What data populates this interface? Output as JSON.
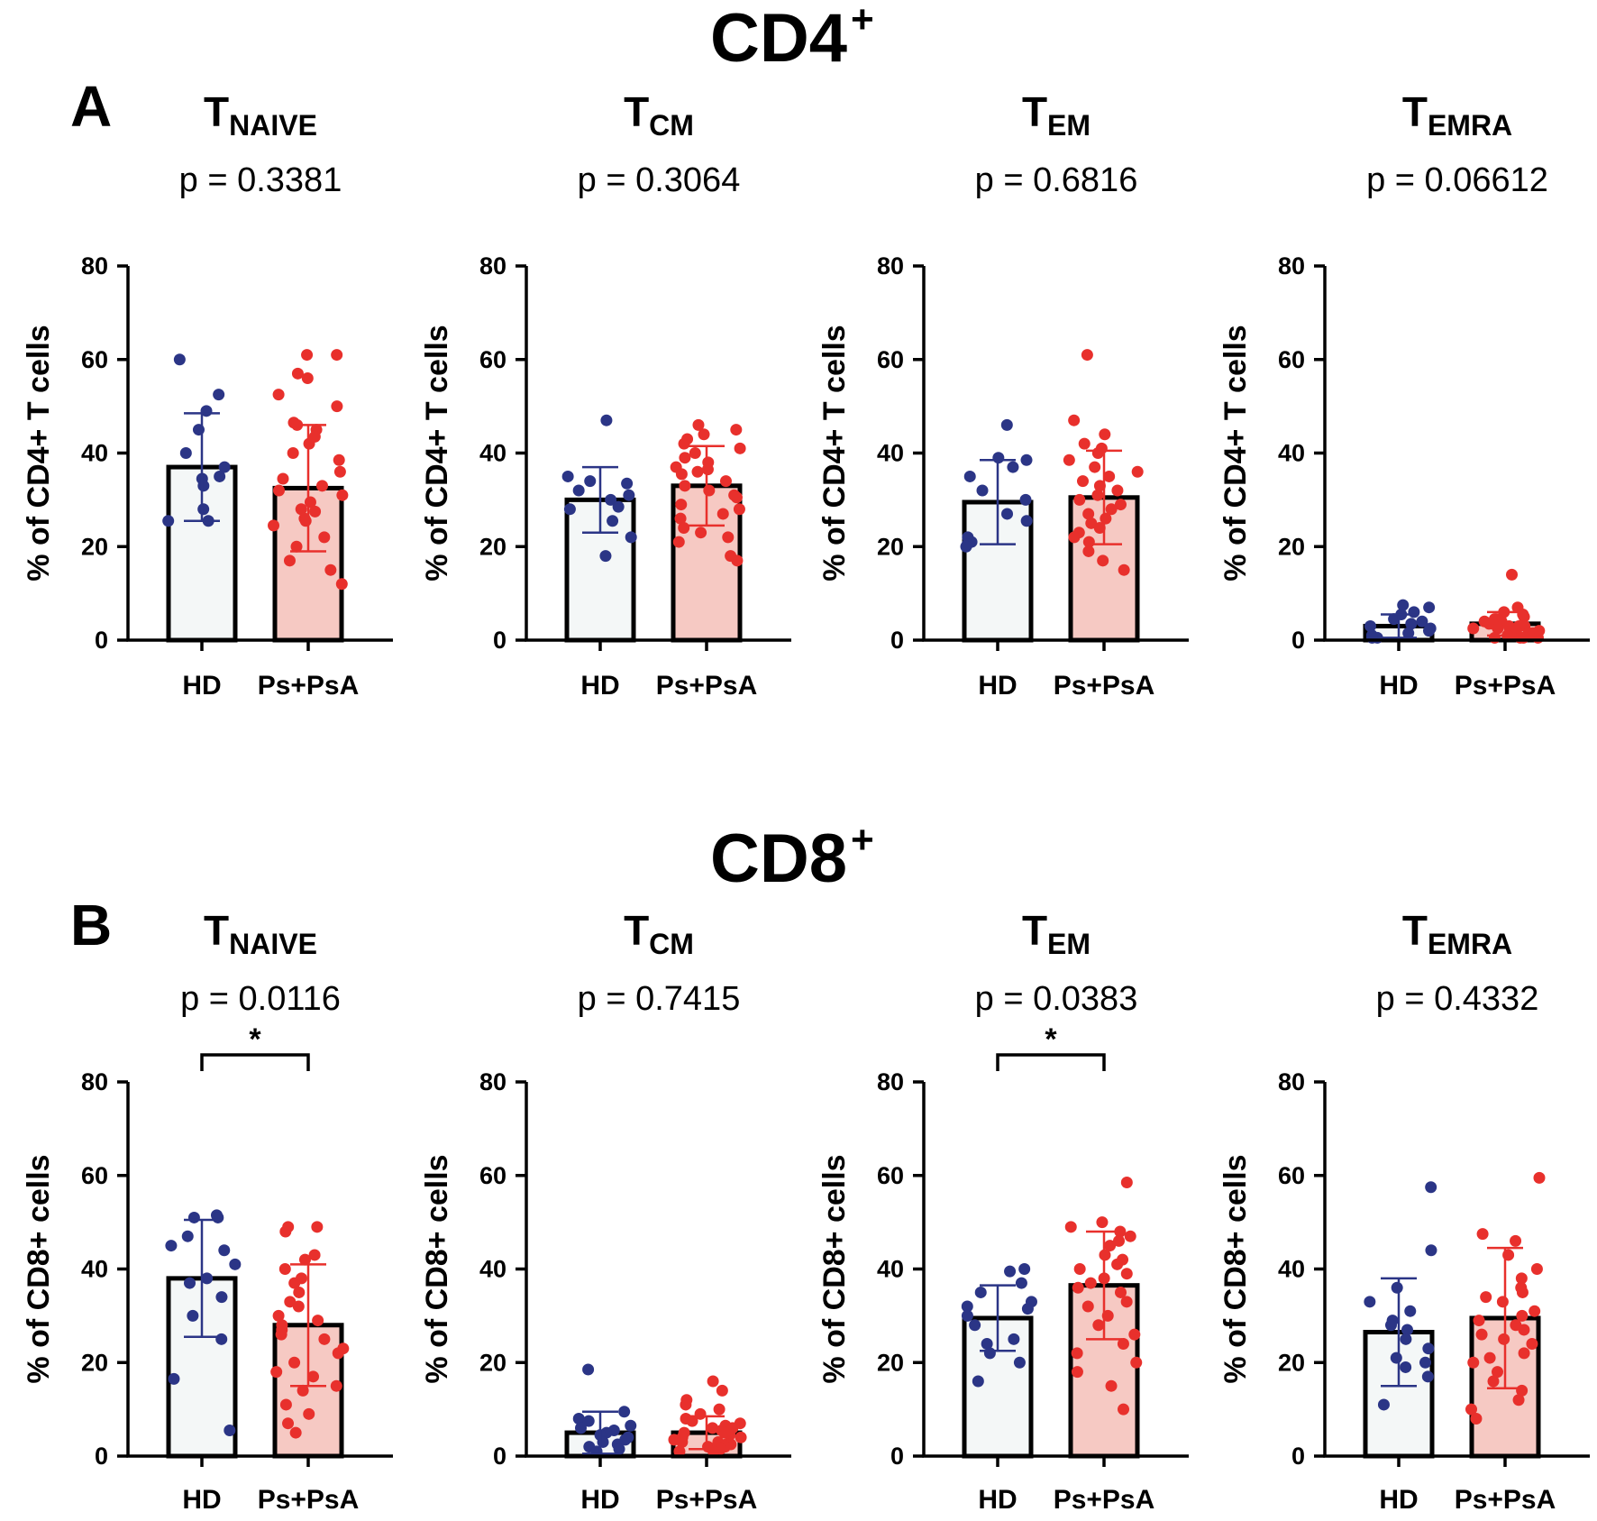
{
  "figure": {
    "sections": [
      {
        "title": "CD4",
        "sup": "+",
        "letter": "A"
      },
      {
        "title": "CD8",
        "sup": "+",
        "letter": "B"
      }
    ]
  },
  "colors": {
    "hd": "#2b3586",
    "ps": "#e8302c",
    "hd_fill": "#f4f7f7",
    "ps_fill": "#f6c9c3"
  },
  "chart_data": [
    {
      "id": "cd4-naive",
      "type": "bar",
      "section": 0,
      "title": "T",
      "subscript": "NAIVE",
      "p_text": "p = 0.3381",
      "ylabel": "% of CD4+ T cells",
      "ylim": [
        0,
        80
      ],
      "yticks": [
        "0",
        "20",
        "40",
        "60",
        "80"
      ],
      "categories": [
        "HD",
        "Ps+PsA"
      ],
      "significant": false,
      "star": "",
      "series": [
        {
          "name": "HD",
          "mean": 37,
          "sd": 11.5,
          "points": [
            60,
            52.5,
            49,
            45,
            40,
            37,
            35,
            34.5,
            33,
            28,
            25.5,
            25.5
          ]
        },
        {
          "name": "Ps+PsA",
          "mean": 32.5,
          "sd": 13.5,
          "points": [
            61,
            61,
            57,
            56,
            52.5,
            50,
            46.5,
            46,
            45,
            43.5,
            42,
            40,
            38.5,
            36,
            34.5,
            33,
            32,
            31,
            29.5,
            28,
            27.5,
            26,
            25.5,
            24.5,
            22,
            20,
            17,
            15,
            12
          ]
        }
      ]
    },
    {
      "id": "cd4-cm",
      "type": "bar",
      "section": 0,
      "title": "T",
      "subscript": "CM",
      "p_text": "p = 0.3064",
      "ylabel": "% of CD4+ T cells",
      "ylim": [
        0,
        80
      ],
      "yticks": [
        "0",
        "20",
        "40",
        "60",
        "80"
      ],
      "categories": [
        "HD",
        "Ps+PsA"
      ],
      "significant": false,
      "star": "",
      "series": [
        {
          "name": "HD",
          "mean": 30,
          "sd": 7,
          "points": [
            47,
            35,
            34,
            33.5,
            32,
            31,
            30,
            28.5,
            28,
            25.5,
            22,
            18
          ]
        },
        {
          "name": "Ps+PsA",
          "mean": 33,
          "sd": 8.5,
          "points": [
            46,
            45,
            44,
            43,
            42,
            41,
            40,
            39,
            38,
            37,
            36.5,
            36,
            35.5,
            34,
            33,
            32,
            31,
            30.5,
            29,
            28,
            27,
            26,
            24,
            23,
            22,
            21,
            18,
            17
          ]
        }
      ]
    },
    {
      "id": "cd4-em",
      "type": "bar",
      "section": 0,
      "title": "T",
      "subscript": "EM",
      "p_text": "p = 0.6816",
      "ylabel": "% of CD4+ T cells",
      "ylim": [
        0,
        80
      ],
      "yticks": [
        "0",
        "20",
        "40",
        "60",
        "80"
      ],
      "categories": [
        "HD",
        "Ps+PsA"
      ],
      "significant": false,
      "star": "",
      "series": [
        {
          "name": "HD",
          "mean": 29.5,
          "sd": 9,
          "points": [
            46,
            39,
            38.5,
            37,
            35,
            32,
            30,
            27,
            25.5,
            22,
            21,
            20.5,
            20
          ]
        },
        {
          "name": "Ps+PsA",
          "mean": 30.5,
          "sd": 10,
          "points": [
            61,
            47,
            44,
            42,
            41,
            40,
            38.5,
            37,
            36,
            35,
            34,
            33,
            32,
            31,
            30,
            29,
            28,
            27,
            26,
            25,
            24,
            23,
            22,
            21,
            19,
            17,
            15
          ]
        }
      ]
    },
    {
      "id": "cd4-emra",
      "type": "bar",
      "section": 0,
      "title": "T",
      "subscript": "EMRA",
      "p_text": "p = 0.06612",
      "ylabel": "% of CD4+ T cells",
      "ylim": [
        0,
        80
      ],
      "yticks": [
        "0",
        "20",
        "40",
        "60",
        "80"
      ],
      "categories": [
        "HD",
        "Ps+PsA"
      ],
      "significant": false,
      "star": "",
      "series": [
        {
          "name": "HD",
          "mean": 3,
          "sd": 2.5,
          "points": [
            7.5,
            7,
            6,
            5.5,
            4.5,
            4,
            3.5,
            3,
            2.5,
            2,
            1.5,
            1,
            0.5,
            0.5
          ]
        },
        {
          "name": "Ps+PsA",
          "mean": 3.5,
          "sd": 2.5,
          "points": [
            14,
            7,
            6,
            5.5,
            5,
            4.5,
            4.5,
            4,
            4,
            3.5,
            3.5,
            3,
            3,
            3,
            2.5,
            2.5,
            2,
            2,
            2,
            1.5,
            1.5,
            1,
            1,
            1,
            0.5,
            0.5,
            0.5,
            0.5
          ]
        }
      ]
    },
    {
      "id": "cd8-naive",
      "type": "bar",
      "section": 1,
      "title": "T",
      "subscript": "NAIVE",
      "p_text": "p = 0.0116",
      "ylabel": "% of CD8+ cells",
      "ylim": [
        0,
        80
      ],
      "yticks": [
        "0",
        "20",
        "40",
        "60",
        "80"
      ],
      "categories": [
        "HD",
        "Ps+PsA"
      ],
      "significant": true,
      "star": "*",
      "series": [
        {
          "name": "HD",
          "mean": 38,
          "sd": 12.5,
          "points": [
            51.5,
            51,
            51,
            47,
            45,
            44,
            41,
            38,
            37,
            34,
            30,
            25,
            16.5,
            5.5
          ]
        },
        {
          "name": "Ps+PsA",
          "mean": 28,
          "sd": 13,
          "points": [
            49,
            49,
            48,
            43,
            42,
            40,
            38,
            37,
            35,
            33,
            32,
            30,
            29,
            28,
            27,
            26,
            25,
            23,
            22,
            20,
            18,
            17,
            15,
            14,
            11,
            9,
            7,
            5
          ]
        }
      ]
    },
    {
      "id": "cd8-cm",
      "type": "bar",
      "section": 1,
      "title": "T",
      "subscript": "CM",
      "p_text": "p = 0.7415",
      "ylabel": "% of CD8+ cells",
      "ylim": [
        0,
        80
      ],
      "yticks": [
        "0",
        "20",
        "40",
        "60",
        "80"
      ],
      "categories": [
        "HD",
        "Ps+PsA"
      ],
      "significant": false,
      "star": "",
      "series": [
        {
          "name": "HD",
          "mean": 5,
          "sd": 4.5,
          "points": [
            18.5,
            9.5,
            8,
            7.5,
            6.5,
            6,
            5.5,
            5,
            4.5,
            4,
            3.5,
            3,
            2.5,
            2,
            1.5,
            1
          ]
        },
        {
          "name": "Ps+PsA",
          "mean": 5,
          "sd": 3.5,
          "points": [
            16,
            14,
            12,
            11,
            10,
            9,
            8,
            7.5,
            7,
            6.5,
            6,
            6,
            5.5,
            5,
            5,
            4.5,
            4,
            4,
            3.5,
            3,
            3,
            2.5,
            2.5,
            2,
            2,
            1.5,
            1,
            1
          ]
        }
      ]
    },
    {
      "id": "cd8-em",
      "type": "bar",
      "section": 1,
      "title": "T",
      "subscript": "EM",
      "p_text": "p = 0.0383",
      "ylabel": "% of CD8+ cells",
      "ylim": [
        0,
        80
      ],
      "yticks": [
        "0",
        "20",
        "40",
        "60",
        "80"
      ],
      "categories": [
        "HD",
        "Ps+PsA"
      ],
      "significant": true,
      "star": "*",
      "series": [
        {
          "name": "HD",
          "mean": 29.5,
          "sd": 7,
          "points": [
            40,
            39.5,
            37,
            35,
            33,
            32,
            31.5,
            30,
            28,
            25,
            24,
            22,
            20,
            16
          ]
        },
        {
          "name": "Ps+PsA",
          "mean": 36.5,
          "sd": 11.5,
          "points": [
            58.5,
            50,
            49,
            48,
            47,
            46,
            45,
            43,
            42,
            41,
            40,
            39,
            38,
            37,
            36,
            35,
            33,
            32,
            30,
            28,
            26,
            24,
            22,
            20,
            18,
            15,
            10
          ]
        }
      ]
    },
    {
      "id": "cd8-emra",
      "type": "bar",
      "section": 1,
      "title": "T",
      "subscript": "EMRA",
      "p_text": "p = 0.4332",
      "ylabel": "% of CD8+ cells",
      "ylim": [
        0,
        80
      ],
      "yticks": [
        "0",
        "20",
        "40",
        "60",
        "80"
      ],
      "categories": [
        "HD",
        "Ps+PsA"
      ],
      "significant": false,
      "star": "",
      "series": [
        {
          "name": "HD",
          "mean": 26.5,
          "sd": 11.5,
          "points": [
            57.5,
            44,
            36,
            33,
            31,
            29,
            28,
            27,
            25,
            23,
            21,
            20,
            19,
            17,
            11
          ]
        },
        {
          "name": "Ps+PsA",
          "mean": 29.5,
          "sd": 15,
          "points": [
            59.5,
            47.5,
            46,
            43,
            40,
            38,
            36,
            35,
            34,
            33,
            31,
            30,
            29,
            28,
            27,
            26,
            25,
            24,
            22,
            21,
            20,
            18,
            16,
            14,
            12,
            10,
            8
          ]
        }
      ]
    }
  ]
}
